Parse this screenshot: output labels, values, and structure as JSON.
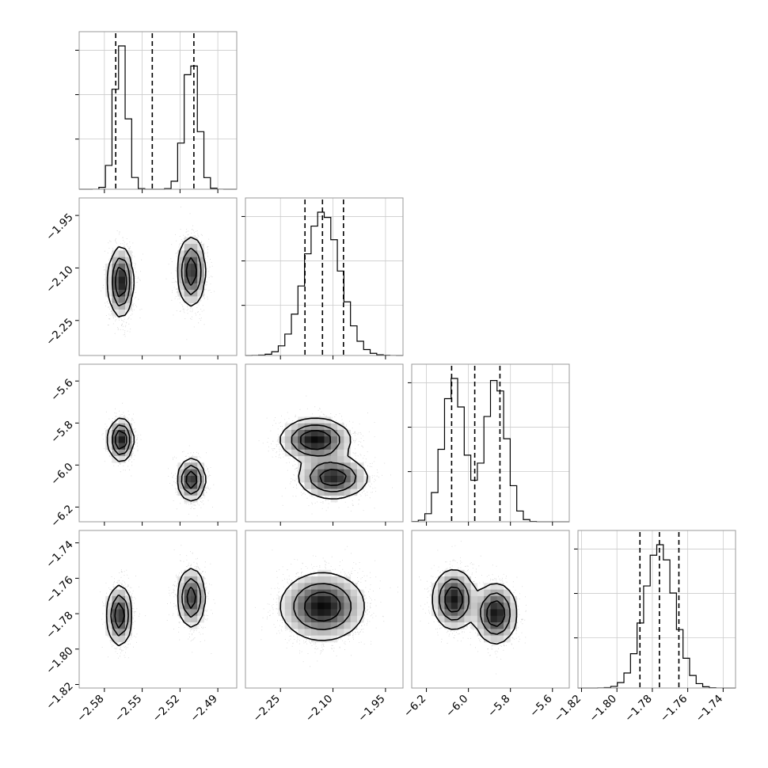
{
  "chart_data": {
    "type": "corner",
    "parameters": [
      {
        "ticks": [
          -2.58,
          -2.55,
          -2.52,
          -2.49
        ],
        "tick_labels": [
          "−2.58",
          "−2.55",
          "−2.52",
          "−2.49"
        ],
        "range": [
          -2.6,
          -2.475
        ],
        "quantiles": [
          -2.571,
          -2.542,
          -2.509
        ],
        "modes": [
          {
            "mean": -2.567,
            "sd": 0.0048,
            "weight": 1.0
          },
          {
            "mean": -2.511,
            "sd": 0.0055,
            "weight": 0.9
          }
        ]
      },
      {
        "ticks": [
          -2.25,
          -2.1,
          -1.95
        ],
        "tick_labels": [
          "−2.25",
          "−2.10",
          "−1.95"
        ],
        "range": [
          -2.35,
          -1.9
        ],
        "quantiles": [
          -2.18,
          -2.13,
          -2.07
        ],
        "modes": [
          {
            "mean": -2.13,
            "sd": 0.05,
            "weight": 1.0
          }
        ]
      },
      {
        "ticks": [
          -6.2,
          -6.0,
          -5.8,
          -5.6
        ],
        "tick_labels": [
          "−6.2",
          "−6.0",
          "−5.8",
          "−5.6"
        ],
        "range": [
          -6.27,
          -5.52
        ],
        "quantiles": [
          -6.08,
          -5.97,
          -5.85
        ],
        "modes": [
          {
            "mean": -6.07,
            "sd": 0.05,
            "weight": 1.0
          },
          {
            "mean": -5.87,
            "sd": 0.05,
            "weight": 1.0
          }
        ]
      },
      {
        "ticks": [
          -1.82,
          -1.8,
          -1.78,
          -1.76,
          -1.74
        ],
        "tick_labels": [
          "−1.82",
          "−1.80",
          "−1.78",
          "−1.76",
          "−1.74"
        ],
        "range": [
          -1.822,
          -1.733
        ],
        "quantiles": [
          -1.787,
          -1.776,
          -1.765
        ],
        "modes": [
          {
            "mean": -1.776,
            "sd": 0.0085,
            "weight": 1.0
          }
        ]
      }
    ],
    "pair_clusters": {
      "1-0": [
        {
          "cx": -2.567,
          "cy": -2.14,
          "sx": 0.0048,
          "sy": 0.05,
          "w": 1.0
        },
        {
          "cx": -2.511,
          "cy": -2.11,
          "sx": 0.0055,
          "sy": 0.05,
          "w": 0.9
        }
      ],
      "2-0": [
        {
          "cx": -2.567,
          "cy": -5.88,
          "sx": 0.0048,
          "sy": 0.05,
          "w": 1.0
        },
        {
          "cx": -2.511,
          "cy": -6.07,
          "sx": 0.0055,
          "sy": 0.05,
          "w": 0.9
        }
      ],
      "2-1": [
        {
          "cx": -2.15,
          "cy": -5.88,
          "sx": 0.05,
          "sy": 0.05,
          "w": 1.0
        },
        {
          "cx": -2.1,
          "cy": -6.06,
          "sx": 0.05,
          "sy": 0.05,
          "w": 0.9
        }
      ],
      "3-0": [
        {
          "cx": -2.568,
          "cy": -1.781,
          "sx": 0.0048,
          "sy": 0.0085,
          "w": 1.0
        },
        {
          "cx": -2.511,
          "cy": -1.771,
          "sx": 0.0055,
          "sy": 0.0085,
          "w": 0.9
        }
      ],
      "3-1": [
        {
          "cx": -2.13,
          "cy": -1.776,
          "sx": 0.06,
          "sy": 0.0095,
          "w": 1.0
        }
      ],
      "3-2": [
        {
          "cx": -6.07,
          "cy": -1.772,
          "sx": 0.05,
          "sy": 0.0085,
          "w": 1.0
        },
        {
          "cx": -5.87,
          "cy": -1.78,
          "sx": 0.05,
          "sy": 0.0085,
          "w": 1.0
        }
      ]
    },
    "grid": true
  }
}
